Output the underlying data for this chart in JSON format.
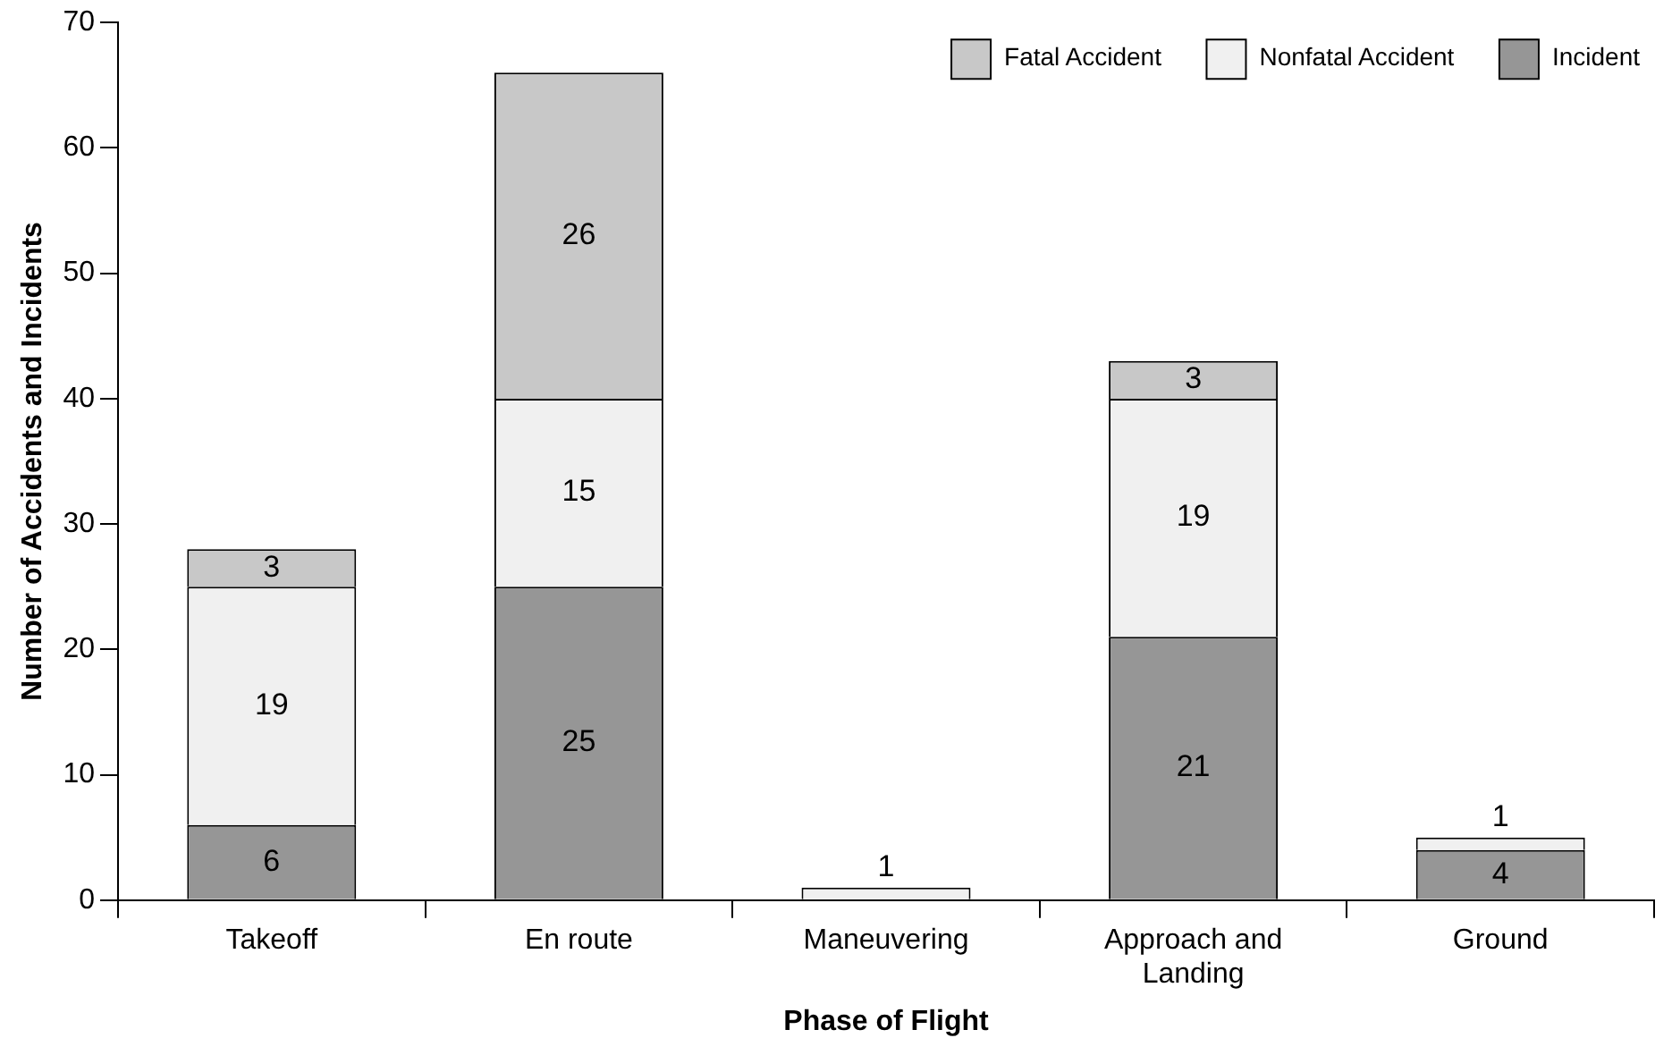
{
  "chart_data": {
    "type": "bar",
    "xlabel": "Phase of Flight",
    "ylabel": "Number of Accidents and Incidents",
    "categories": [
      "Takeoff",
      "En route",
      "Maneuvering",
      "Approach and Landing",
      "Ground"
    ],
    "series": [
      {
        "name": "Incident",
        "color": "#969696",
        "values": [
          6,
          25,
          null,
          21,
          4
        ]
      },
      {
        "name": "Nonfatal Accident",
        "color": "#f0f0f0",
        "values": [
          19,
          15,
          1,
          19,
          1
        ]
      },
      {
        "name": "Fatal Accident",
        "color": "#c8c8c8",
        "values": [
          3,
          26,
          null,
          3,
          null
        ]
      }
    ],
    "stacked": true,
    "data_labels": true,
    "ylim": [
      0,
      70
    ],
    "yticks": [
      0,
      10,
      20,
      30,
      40,
      50,
      60,
      70
    ],
    "grid": false,
    "legend": "top right"
  }
}
